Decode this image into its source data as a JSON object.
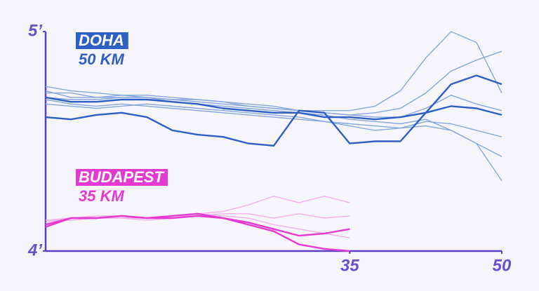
{
  "chart_data": {
    "type": "line",
    "xlim": [
      5,
      50
    ],
    "xticks": [
      35,
      50
    ],
    "ylim": [
      4,
      5
    ],
    "yticks": [
      {
        "value": 4,
        "label": "4’"
      },
      {
        "value": 5,
        "label": "5’"
      }
    ],
    "races": [
      {
        "label": "DOHA",
        "distance": "50 KM",
        "color": "#2d5fc4",
        "x": [
          5,
          7.5,
          10,
          12.5,
          15,
          17.5,
          20,
          22.5,
          25,
          27.5,
          30,
          32.5,
          35,
          37.5,
          40,
          42.5,
          45,
          47.5,
          50
        ],
        "series": [
          {
            "color": "#86a8de",
            "highlight": false,
            "values": [
              4.75,
              4.73,
              4.72,
              4.71,
              4.71,
              4.7,
              4.69,
              4.68,
              4.66,
              4.65,
              4.64,
              4.64,
              4.64,
              4.66,
              4.73,
              4.88,
              5.0,
              4.95,
              4.72
            ]
          },
          {
            "color": "#86a8de",
            "highlight": false,
            "values": [
              4.72,
              4.72,
              4.7,
              4.71,
              4.7,
              4.69,
              4.68,
              4.67,
              4.66,
              4.65,
              4.64,
              4.63,
              4.62,
              4.63,
              4.65,
              4.72,
              4.82,
              4.87,
              4.91
            ]
          },
          {
            "color": "#86a8de",
            "highlight": false,
            "values": [
              4.73,
              4.7,
              4.7,
              4.7,
              4.7,
              4.68,
              4.67,
              4.66,
              4.65,
              4.64,
              4.63,
              4.62,
              4.6,
              4.59,
              4.58,
              4.6,
              4.55,
              4.49,
              4.32
            ]
          },
          {
            "color": "#86a8de",
            "highlight": false,
            "values": [
              4.69,
              4.67,
              4.66,
              4.67,
              4.66,
              4.65,
              4.64,
              4.63,
              4.62,
              4.61,
              4.6,
              4.59,
              4.58,
              4.57,
              4.56,
              4.57,
              4.55,
              4.49,
              4.43
            ]
          },
          {
            "color": "#86a8de",
            "highlight": false,
            "values": [
              4.67,
              4.66,
              4.65,
              4.66,
              4.67,
              4.66,
              4.65,
              4.64,
              4.63,
              4.62,
              4.61,
              4.59,
              4.57,
              4.55,
              4.56,
              4.59,
              4.58,
              4.55,
              4.52
            ]
          },
          {
            "color": "#86a8de",
            "highlight": false,
            "values": [
              4.7,
              4.69,
              4.69,
              4.7,
              4.7,
              4.69,
              4.69,
              4.68,
              4.67,
              4.66,
              4.64,
              4.63,
              4.62,
              4.61,
              4.61,
              4.65,
              4.71,
              4.67,
              4.64
            ]
          },
          {
            "color": "#2d5fc4",
            "highlight": true,
            "values": [
              4.61,
              4.6,
              4.62,
              4.63,
              4.61,
              4.55,
              4.53,
              4.52,
              4.49,
              4.48,
              4.64,
              4.63,
              4.49,
              4.5,
              4.5,
              4.63,
              4.76,
              4.8,
              4.76
            ]
          },
          {
            "color": "#2d5fc4",
            "highlight": true,
            "values": [
              4.7,
              4.68,
              4.68,
              4.69,
              4.69,
              4.68,
              4.67,
              4.65,
              4.64,
              4.63,
              4.63,
              4.61,
              4.61,
              4.6,
              4.61,
              4.63,
              4.66,
              4.65,
              4.62
            ]
          }
        ]
      },
      {
        "label": "BUDAPEST",
        "distance": "35 KM",
        "color": "#e53ad2",
        "x": [
          5,
          7.5,
          10,
          12.5,
          15,
          17.5,
          20,
          22.5,
          25,
          27.5,
          30,
          32.5,
          35
        ],
        "series": [
          {
            "color": "#f4b0ea",
            "highlight": false,
            "values": [
              4.14,
              4.15,
              4.16,
              4.16,
              4.15,
              4.15,
              4.17,
              4.18,
              4.21,
              4.25,
              4.22,
              4.25,
              4.22
            ]
          },
          {
            "color": "#f4b0ea",
            "highlight": false,
            "values": [
              4.13,
              4.15,
              4.15,
              4.15,
              4.14,
              4.15,
              4.16,
              4.17,
              4.17,
              4.15,
              4.17,
              4.15,
              4.16
            ]
          },
          {
            "color": "#f4b0ea",
            "highlight": false,
            "values": [
              4.14,
              4.14,
              4.15,
              4.15,
              4.15,
              4.16,
              4.17,
              4.16,
              4.15,
              4.12,
              4.1,
              4.08,
              4.06
            ]
          },
          {
            "color": "#e53ad2",
            "highlight": true,
            "values": [
              4.11,
              4.15,
              4.15,
              4.16,
              4.15,
              4.16,
              4.17,
              4.15,
              4.13,
              4.1,
              4.07,
              4.08,
              4.1
            ]
          },
          {
            "color": "#e53ad2",
            "highlight": true,
            "values": [
              4.12,
              4.15,
              4.15,
              4.16,
              4.15,
              4.15,
              4.16,
              4.15,
              4.12,
              4.09,
              4.03,
              4.01,
              4.0
            ]
          }
        ]
      }
    ]
  }
}
